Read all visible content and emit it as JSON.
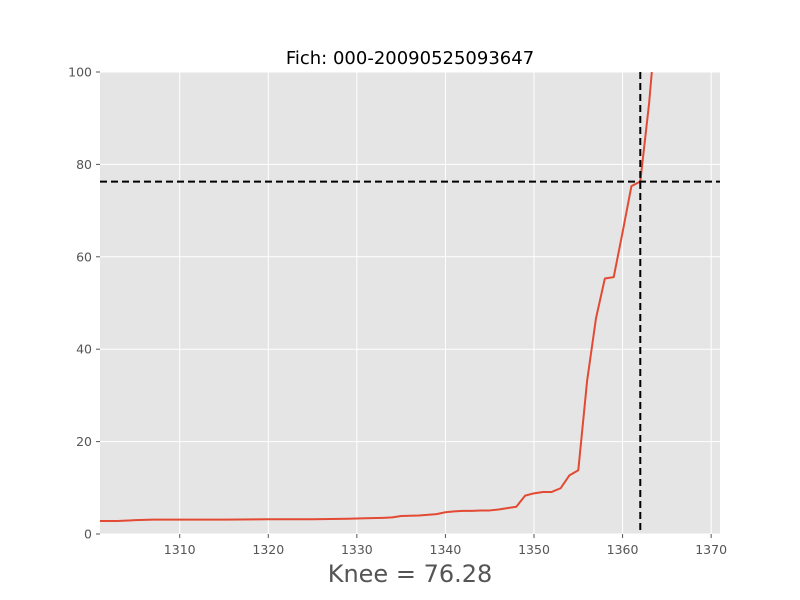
{
  "chart_data": {
    "type": "line",
    "title": "Fich: 000-20090525093647",
    "xlabel": "Knee = 76.28",
    "ylabel": "",
    "xlim": [
      1301,
      1371
    ],
    "ylim": [
      0,
      100
    ],
    "xticks": [
      1310,
      1320,
      1330,
      1340,
      1350,
      1360,
      1370
    ],
    "yticks": [
      0,
      20,
      40,
      60,
      80,
      100
    ],
    "grid": true,
    "style": "ggplot",
    "series": [
      {
        "color": "#E24A33",
        "x": [
          1301,
          1303,
          1305,
          1307,
          1310,
          1315,
          1320,
          1325,
          1329,
          1331,
          1333,
          1334,
          1335,
          1337,
          1339,
          1340,
          1341,
          1342,
          1343,
          1344,
          1345,
          1346,
          1347,
          1348,
          1349,
          1350,
          1351,
          1352,
          1353,
          1354,
          1355,
          1356,
          1357,
          1358,
          1359,
          1360,
          1361,
          1362,
          1363,
          1363.3
        ],
        "y": [
          2.8,
          2.8,
          3.0,
          3.1,
          3.1,
          3.1,
          3.2,
          3.2,
          3.3,
          3.4,
          3.5,
          3.6,
          3.9,
          4.0,
          4.3,
          4.7,
          4.9,
          5.0,
          5.0,
          5.1,
          5.1,
          5.3,
          5.6,
          5.9,
          8.3,
          8.8,
          9.1,
          9.1,
          9.9,
          12.7,
          13.8,
          33.2,
          46.7,
          55.3,
          55.6,
          65.3,
          75.3,
          76.3,
          93.3,
          100
        ]
      }
    ],
    "reference_lines": [
      {
        "orientation": "horizontal",
        "value": 76.28,
        "style": "dashed",
        "color": "#000000"
      },
      {
        "orientation": "vertical",
        "value": 1362,
        "style": "dashed",
        "color": "#000000"
      }
    ]
  }
}
